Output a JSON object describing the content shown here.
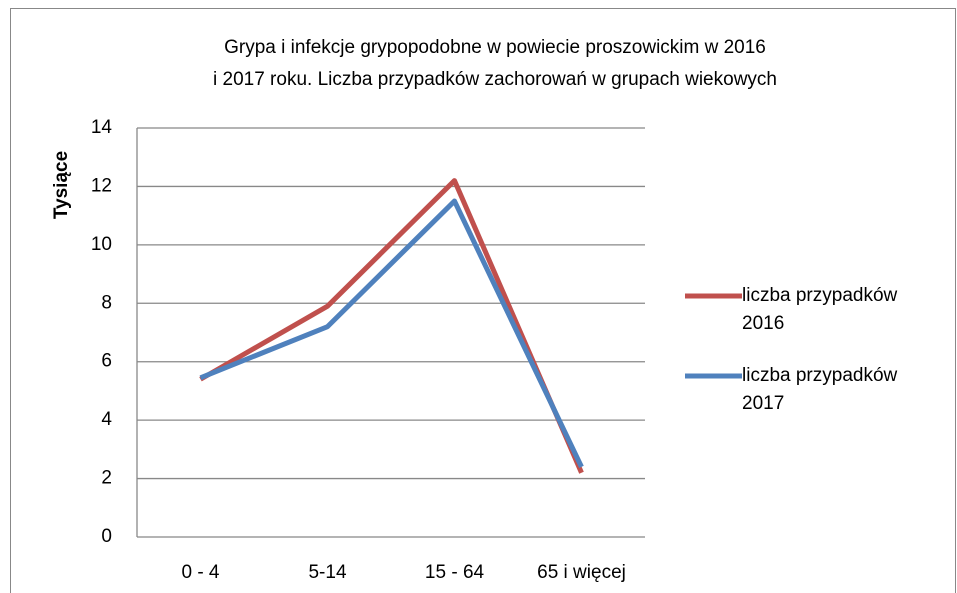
{
  "chart_data": {
    "type": "line",
    "title": [
      "Grypa i infekcje grypopodobne w powiecie proszowickim w 2016",
      "i 2017 roku. Liczba przypadków zachorowań w grupach wiekowych"
    ],
    "y_label": "Tysiące",
    "categories": [
      "0 - 4",
      "5-14",
      "15 - 64",
      "65 i więcej"
    ],
    "series": [
      {
        "name": "liczba przypadków 2016",
        "color": "#c0504d",
        "values": [
          5.4,
          7.9,
          12.2,
          2.2
        ]
      },
      {
        "name": "liczba przypadków 2017",
        "color": "#4f81bd",
        "values": [
          5.45,
          7.2,
          11.5,
          2.4
        ]
      }
    ],
    "ylim": [
      0,
      14
    ],
    "yticks": [
      0,
      2,
      4,
      6,
      8,
      10,
      12,
      14
    ],
    "grid": true,
    "legend": "right"
  }
}
